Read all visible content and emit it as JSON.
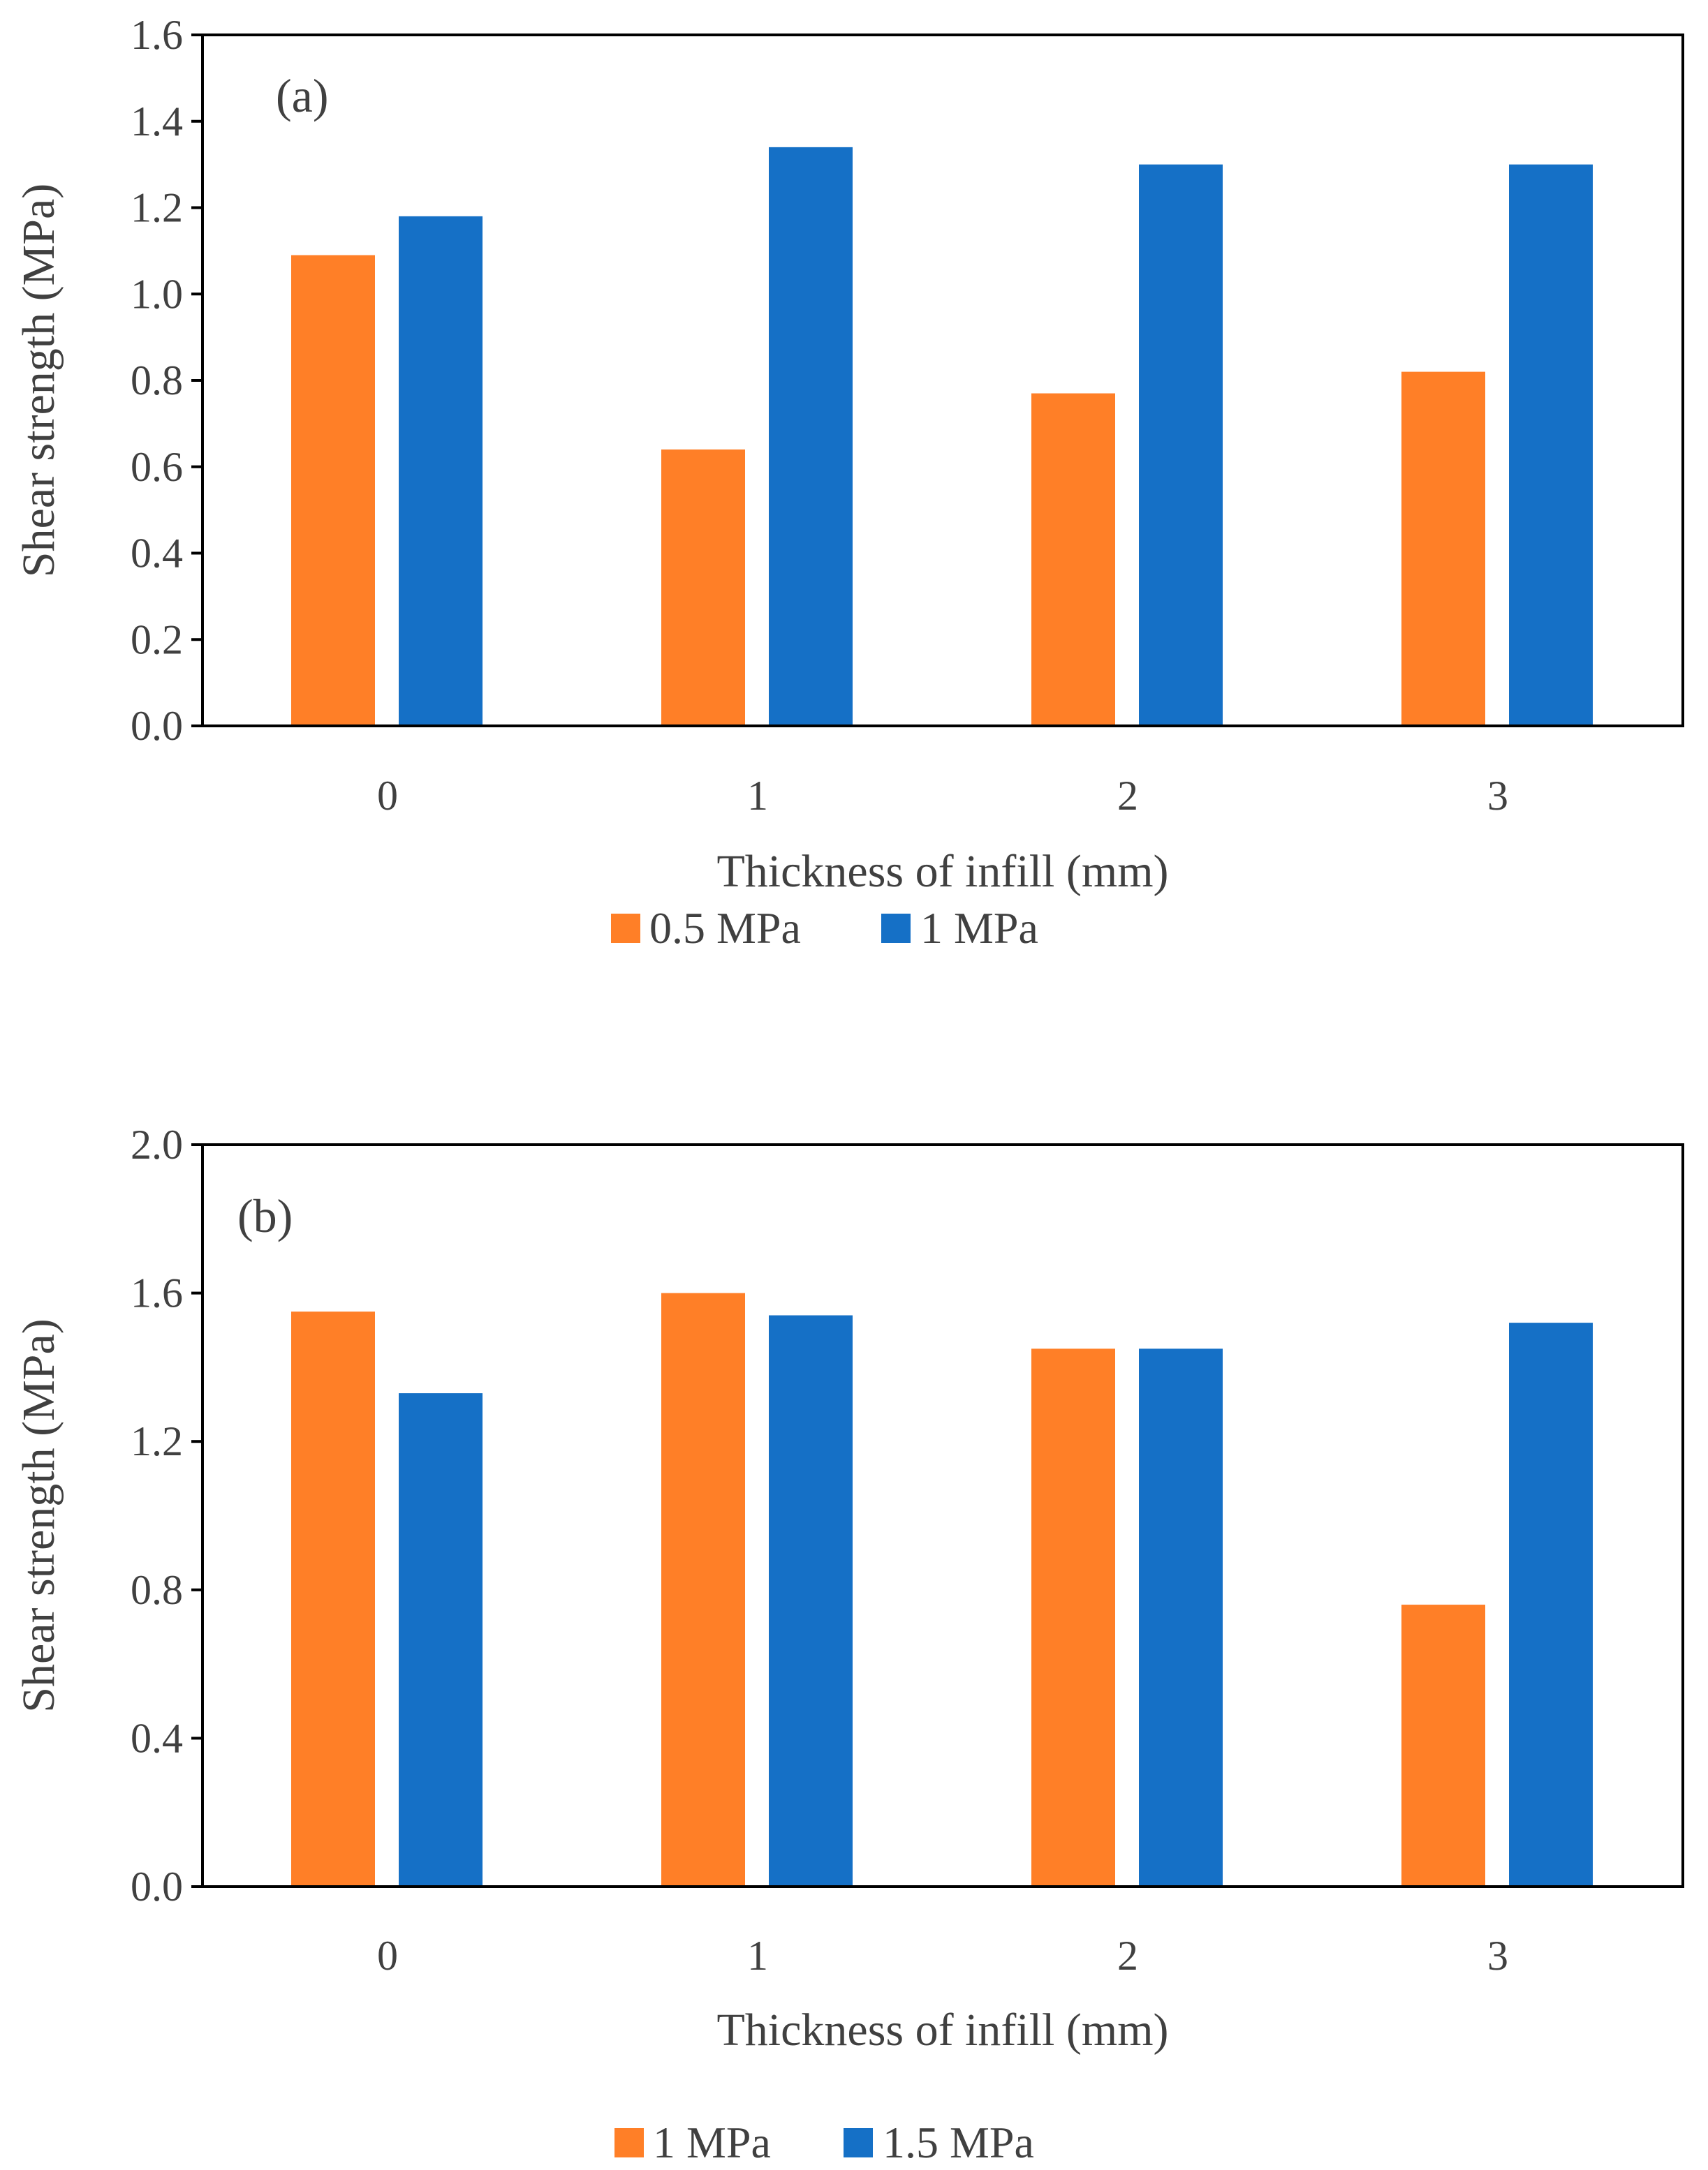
{
  "chart_data": [
    {
      "type": "bar",
      "panel_label": "(a)",
      "categories": [
        "0",
        "1",
        "2",
        "3"
      ],
      "xlabel": "Thickness of infill (mm)",
      "ylabel": "Shear strength (MPa)",
      "ylim": [
        0,
        1.6
      ],
      "yticks": [
        "0.0",
        "0.2",
        "0.4",
        "0.6",
        "0.8",
        "1.0",
        "1.2",
        "1.4",
        "1.6"
      ],
      "grid": false,
      "legend_position": "bottom",
      "series": [
        {
          "name": "0.5 MPa",
          "color": "#FF7F27",
          "values": [
            1.09,
            0.64,
            0.77,
            0.82
          ]
        },
        {
          "name": "1 MPa",
          "color": "#1570C6",
          "values": [
            1.18,
            1.34,
            1.3,
            1.3
          ]
        }
      ]
    },
    {
      "type": "bar",
      "panel_label": "(b)",
      "categories": [
        "0",
        "1",
        "2",
        "3"
      ],
      "xlabel": "Thickness of infill (mm)",
      "ylabel": "Shear strength (MPa)",
      "ylim": [
        0,
        2.0
      ],
      "yticks": [
        "0.0",
        "0.4",
        "0.8",
        "1.2",
        "1.6",
        "2.0"
      ],
      "grid": false,
      "legend_position": "bottom",
      "series": [
        {
          "name": "1 MPa",
          "color": "#FF7F27",
          "values": [
            1.55,
            1.6,
            1.45,
            0.76
          ]
        },
        {
          "name": "1.5 MPa",
          "color": "#1570C6",
          "values": [
            1.33,
            1.54,
            1.45,
            1.52
          ]
        }
      ]
    }
  ]
}
